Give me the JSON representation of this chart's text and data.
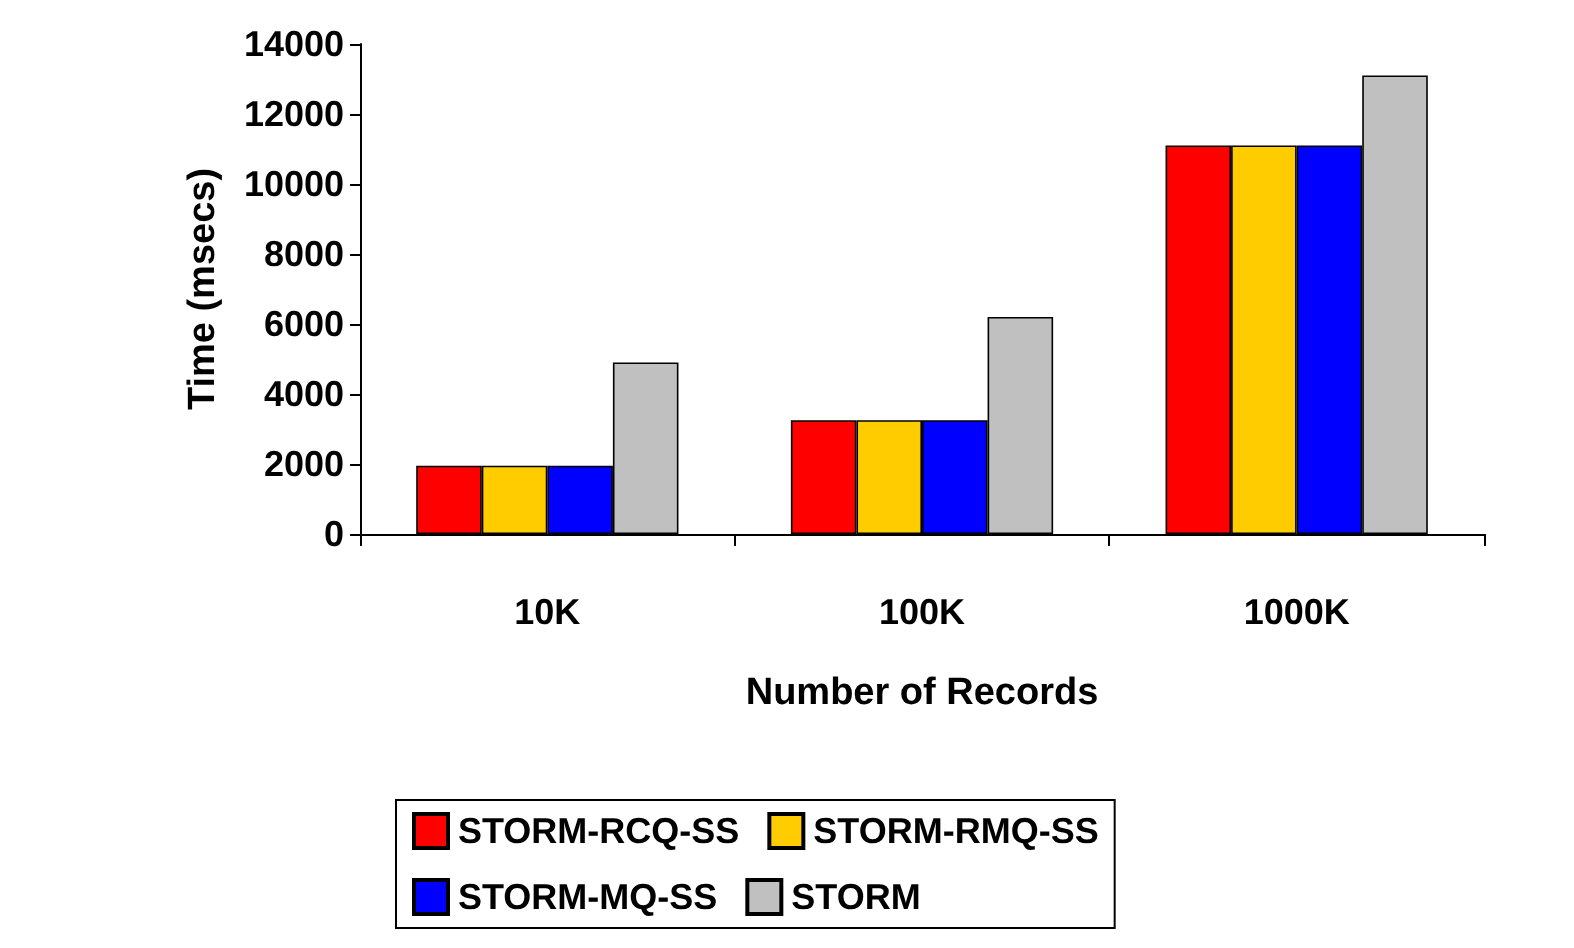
{
  "chart_data": {
    "type": "bar",
    "xlabel": "Number of Records",
    "ylabel": "Time (msecs)",
    "categories": [
      "10K",
      "100K",
      "1000K"
    ],
    "series": [
      {
        "name": "STORM-RCQ-SS",
        "color": "#ff0000",
        "values": [
          1950,
          3250,
          11100
        ]
      },
      {
        "name": "STORM-RMQ-SS",
        "color": "#ffcc00",
        "values": [
          1950,
          3250,
          11100
        ]
      },
      {
        "name": "STORM-MQ-SS",
        "color": "#0000ff",
        "values": [
          1950,
          3250,
          11100
        ]
      },
      {
        "name": "STORM",
        "color": "#c0c0c0",
        "values": [
          4900,
          6200,
          13100
        ]
      }
    ],
    "ylim": [
      0,
      14000
    ],
    "yticks": [
      0,
      2000,
      4000,
      6000,
      8000,
      10000,
      12000,
      14000
    ],
    "grid": false,
    "legend": "bottom"
  }
}
